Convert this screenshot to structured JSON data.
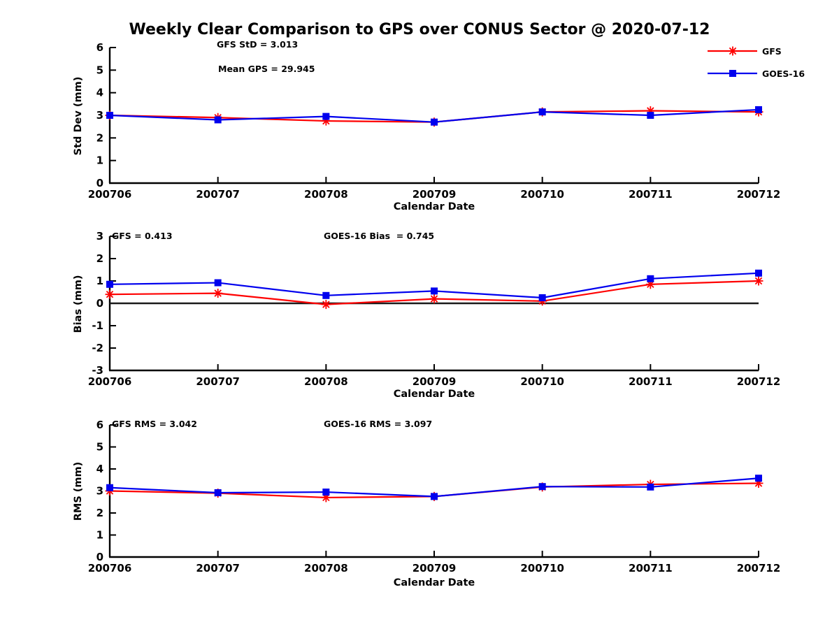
{
  "title": "Weekly Clear Comparison to GPS over CONUS Sector @ 2020-07-12",
  "x_axis_label": "Calendar Date",
  "categories": [
    "200706",
    "200707",
    "200708",
    "200709",
    "200710",
    "200711",
    "200712"
  ],
  "colors": {
    "gfs": "#ff0000",
    "goes16": "#0000ee",
    "axis": "#000000",
    "zero_line": "#1a1a1a"
  },
  "legend": [
    {
      "name": "GFS",
      "color": "#ff0000",
      "marker": "asterisk"
    },
    {
      "name": "GOES-16",
      "color": "#0000ee",
      "marker": "square"
    }
  ],
  "chart_data": [
    {
      "type": "line",
      "ylabel": "Std Dev (mm)",
      "xlabel": "Calendar Date",
      "ylim": [
        0,
        6
      ],
      "yticks": [
        0,
        1,
        2,
        3,
        4,
        5,
        6
      ],
      "zero_line": false,
      "annotations": [
        {
          "text": "GFS StD = 3.013"
        },
        {
          "text": "Mean GPS = 29.945"
        }
      ],
      "series": [
        {
          "name": "GFS",
          "color": "#ff0000",
          "marker": "asterisk",
          "values": [
            3.0,
            2.9,
            2.75,
            2.7,
            3.15,
            3.2,
            3.15
          ]
        },
        {
          "name": "GOES-16",
          "color": "#0000ee",
          "marker": "square",
          "values": [
            3.0,
            2.8,
            2.95,
            2.7,
            3.15,
            3.0,
            3.25
          ]
        }
      ]
    },
    {
      "type": "line",
      "ylabel": "Bias (mm)",
      "xlabel": "Calendar Date",
      "ylim": [
        -3,
        3
      ],
      "yticks": [
        -3,
        -2,
        -1,
        0,
        1,
        2,
        3
      ],
      "zero_line": true,
      "annotations": [
        {
          "text": "GFS = 0.413"
        },
        {
          "text": "GOES-16 Bias  = 0.745"
        }
      ],
      "series": [
        {
          "name": "GFS",
          "color": "#ff0000",
          "marker": "asterisk",
          "values": [
            0.4,
            0.45,
            -0.05,
            0.2,
            0.1,
            0.85,
            1.0
          ]
        },
        {
          "name": "GOES-16",
          "color": "#0000ee",
          "marker": "square",
          "values": [
            0.85,
            0.92,
            0.35,
            0.55,
            0.25,
            1.1,
            1.35
          ]
        }
      ]
    },
    {
      "type": "line",
      "ylabel": "RMS (mm)",
      "xlabel": "Calendar Date",
      "ylim": [
        0,
        6
      ],
      "yticks": [
        0,
        1,
        2,
        3,
        4,
        5,
        6
      ],
      "zero_line": false,
      "annotations": [
        {
          "text": "GFS RMS = 3.042"
        },
        {
          "text": "GOES-16 RMS = 3.097"
        }
      ],
      "series": [
        {
          "name": "GFS",
          "color": "#ff0000",
          "marker": "asterisk",
          "values": [
            3.0,
            2.9,
            2.7,
            2.75,
            3.18,
            3.3,
            3.35
          ]
        },
        {
          "name": "GOES-16",
          "color": "#0000ee",
          "marker": "square",
          "values": [
            3.15,
            2.92,
            2.95,
            2.75,
            3.2,
            3.18,
            3.58
          ]
        }
      ]
    }
  ]
}
